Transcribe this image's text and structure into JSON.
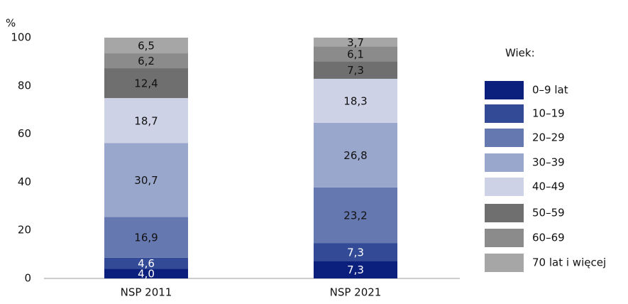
{
  "chart_data": {
    "type": "stacked_bar",
    "y_label": "%",
    "legend_title": "Wiek:",
    "categories": [
      "NSP 2011",
      "NSP 2021"
    ],
    "ylim": [
      0,
      100
    ],
    "yticks": [
      0,
      20,
      40,
      60,
      80,
      100
    ],
    "grid": false,
    "legend": "right",
    "series": [
      {
        "name": "0–9 lat",
        "color": "#0b1f7c",
        "label_color": "#ffffff",
        "values": [
          4.0,
          7.3
        ],
        "value_labels": [
          "4,0",
          "7,3"
        ]
      },
      {
        "name": "10–19",
        "color": "#334b97",
        "label_color": "#ffffff",
        "values": [
          4.6,
          7.3
        ],
        "value_labels": [
          "4,6",
          "7,3"
        ]
      },
      {
        "name": "20–29",
        "color": "#6678b0",
        "label_color": "#111111",
        "values": [
          16.9,
          23.2
        ],
        "value_labels": [
          "16,9",
          "23,2"
        ]
      },
      {
        "name": "30–39",
        "color": "#9aa7cd",
        "label_color": "#111111",
        "values": [
          30.7,
          26.8
        ],
        "value_labels": [
          "30,7",
          "26,8"
        ]
      },
      {
        "name": "40–49",
        "color": "#cdd2e7",
        "label_color": "#111111",
        "values": [
          18.7,
          18.3
        ],
        "value_labels": [
          "18,7",
          "18,3"
        ]
      },
      {
        "name": "50–59",
        "color": "#6f6f6f",
        "label_color": "#111111",
        "values": [
          12.4,
          7.3
        ],
        "value_labels": [
          "12,4",
          "7,3"
        ]
      },
      {
        "name": "60–69",
        "color": "#8b8b8b",
        "label_color": "#111111",
        "values": [
          6.2,
          6.1
        ],
        "value_labels": [
          "6,2",
          "6,1"
        ]
      },
      {
        "name": "70 lat i więcej",
        "color": "#a6a6a6",
        "label_color": "#111111",
        "values": [
          6.5,
          3.7
        ],
        "value_labels": [
          "6,5",
          "3,7"
        ]
      }
    ]
  }
}
